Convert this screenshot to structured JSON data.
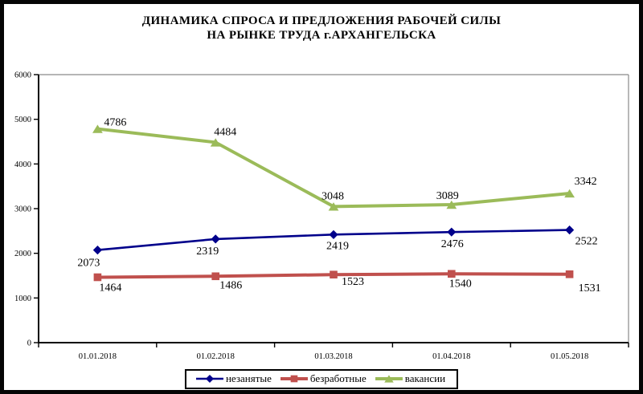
{
  "title": {
    "line1": "ДИНАМИКА СПРОСА И ПРЕДЛОЖЕНИЯ РАБОЧЕЙ СИЛЫ",
    "line2": "НА РЫНКЕ ТРУДА г.АРХАНГЕЛЬСКА"
  },
  "chart_data": {
    "type": "line",
    "categories": [
      "01.01.2018",
      "01.02.2018",
      "01.03.2018",
      "01.04.2018",
      "01.05.2018"
    ],
    "series": [
      {
        "name": "незанятые",
        "values": [
          2073,
          2319,
          2419,
          2476,
          2522
        ],
        "color": "#00008B",
        "marker": "diamond"
      },
      {
        "name": "безработные",
        "values": [
          1464,
          1486,
          1523,
          1540,
          1531
        ],
        "color": "#C0504D",
        "marker": "square"
      },
      {
        "name": "вакансии",
        "values": [
          4786,
          4484,
          3048,
          3089,
          3342
        ],
        "color": "#9BBB59",
        "marker": "triangle"
      }
    ],
    "ylim": [
      0,
      6000
    ],
    "ytick_interval": 1000,
    "yticks": [
      "0",
      "1000",
      "2000",
      "3000",
      "4000",
      "5000",
      "6000"
    ],
    "grid": false,
    "data_labels": true,
    "legend_position": "bottom"
  }
}
